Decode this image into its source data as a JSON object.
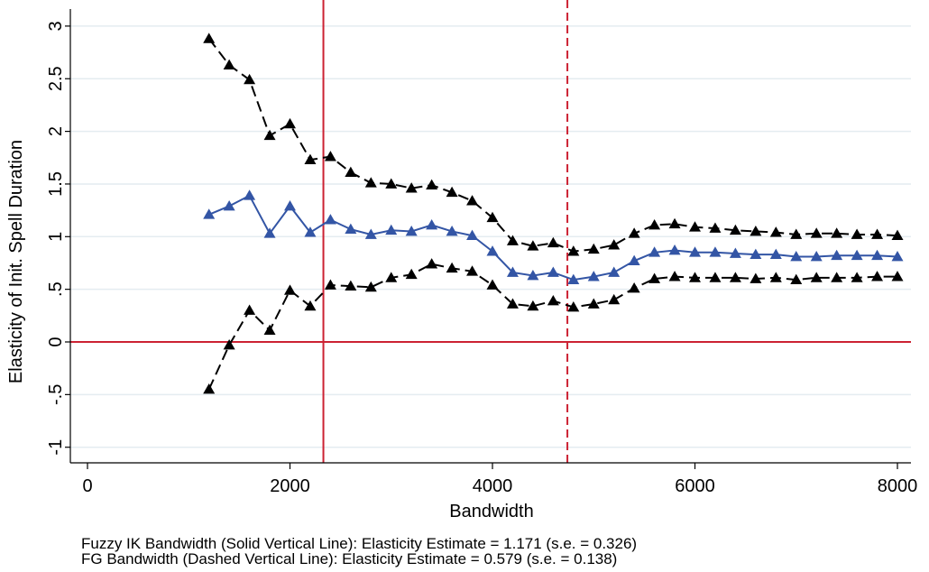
{
  "chart_data": {
    "type": "line",
    "title": "",
    "xlabel": "Bandwidth",
    "ylabel": "Elasticity of Init. Spell Duration",
    "xlim": [
      -150,
      8100
    ],
    "ylim": [
      -1.2,
      3.15
    ],
    "xticks": [
      0,
      2000,
      4000,
      6000,
      8000
    ],
    "xtick_labels": [
      "0",
      "2000",
      "4000",
      "6000",
      "8000"
    ],
    "yticks": [
      -1,
      -0.5,
      0,
      0.5,
      1,
      1.5,
      2,
      2.5,
      3
    ],
    "ytick_labels": [
      "-1",
      "-.5",
      "0",
      ".5",
      "1",
      "1.5",
      "2",
      "2.5",
      "3"
    ],
    "grid": true,
    "x": [
      1200,
      1400,
      1600,
      1800,
      2000,
      2200,
      2400,
      2600,
      2800,
      3000,
      3200,
      3400,
      3600,
      3800,
      4000,
      4200,
      4400,
      4600,
      4800,
      5000,
      5200,
      5400,
      5600,
      5800,
      6000,
      6200,
      6400,
      6600,
      6800,
      7000,
      7200,
      7400,
      7600,
      7800,
      8000
    ],
    "series": [
      {
        "role": "upper",
        "color": "#000000",
        "dashed": true,
        "values": [
          2.88,
          2.63,
          2.49,
          1.96,
          2.07,
          1.73,
          1.76,
          1.61,
          1.51,
          1.5,
          1.46,
          1.49,
          1.42,
          1.34,
          1.18,
          0.96,
          0.91,
          0.94,
          0.86,
          0.88,
          0.92,
          1.03,
          1.11,
          1.12,
          1.09,
          1.08,
          1.06,
          1.05,
          1.04,
          1.02,
          1.03,
          1.03,
          1.02,
          1.02,
          1.01
        ]
      },
      {
        "role": "estimate",
        "color": "#3355a5",
        "dashed": false,
        "values": [
          1.21,
          1.29,
          1.39,
          1.03,
          1.29,
          1.04,
          1.16,
          1.07,
          1.02,
          1.06,
          1.05,
          1.11,
          1.05,
          1.01,
          0.86,
          0.66,
          0.63,
          0.66,
          0.59,
          0.62,
          0.66,
          0.77,
          0.85,
          0.87,
          0.85,
          0.85,
          0.84,
          0.83,
          0.83,
          0.81,
          0.81,
          0.82,
          0.82,
          0.82,
          0.81
        ]
      },
      {
        "role": "lower",
        "color": "#000000",
        "dashed": true,
        "values": [
          -0.45,
          -0.03,
          0.3,
          0.11,
          0.49,
          0.34,
          0.54,
          0.53,
          0.52,
          0.61,
          0.64,
          0.74,
          0.7,
          0.67,
          0.54,
          0.36,
          0.34,
          0.39,
          0.33,
          0.36,
          0.4,
          0.51,
          0.6,
          0.62,
          0.61,
          0.61,
          0.61,
          0.6,
          0.61,
          0.59,
          0.61,
          0.61,
          0.61,
          0.62,
          0.62
        ]
      }
    ],
    "reference_lines": [
      {
        "axis": "x",
        "value": 2330,
        "style": "solid",
        "color": "#cc2233"
      },
      {
        "axis": "x",
        "value": 4740,
        "style": "dashed",
        "color": "#cc2233"
      },
      {
        "axis": "y",
        "value": 0,
        "style": "solid",
        "color": "#cc2233"
      }
    ],
    "notes": [
      "Fuzzy IK Bandwidth (Solid Vertical Line): Elasticity Estimate = 1.171 (s.e. = 0.326)",
      "FG Bandwidth (Dashed Vertical Line): Elasticity Estimate = 0.579 (s.e. = 0.138)"
    ]
  }
}
